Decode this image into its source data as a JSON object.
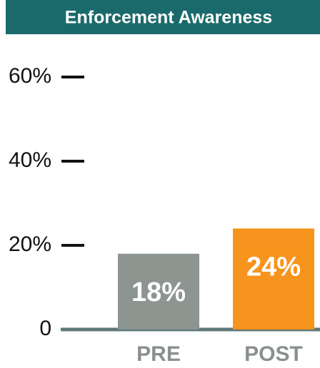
{
  "chart_data": {
    "type": "bar",
    "title": "Enforcement Awareness",
    "categories": [
      "PRE",
      "POST"
    ],
    "values": [
      18,
      24
    ],
    "value_labels": [
      "18%",
      "24%"
    ],
    "colors": [
      "#8d9591",
      "#f7941d"
    ],
    "ylim": [
      0,
      60
    ],
    "yticks": [
      0,
      {
        "value": 20,
        "label": "20%"
      },
      {
        "value": 40,
        "label": "40%"
      },
      {
        "value": 60,
        "label": "60%"
      }
    ]
  }
}
